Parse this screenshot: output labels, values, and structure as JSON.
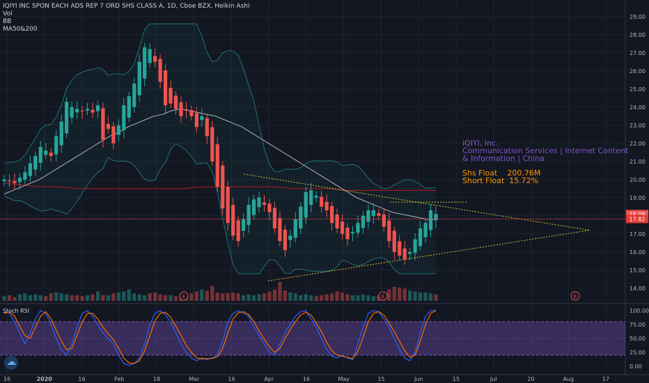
{
  "legend": {
    "title": "IQIYI INC SPON EACH ADS REP 7 ORD SHS CLASS A, 1D, Cboe BZX, Heikin Ashi",
    "lines": [
      "Vol",
      "BB",
      "MA50&200"
    ]
  },
  "info_box": {
    "company": "iQIYI, Inc.",
    "description": "Communication Services | Internet Content & Information | China",
    "shs_float_label": "Shs Float",
    "shs_float_value": "200.76M",
    "short_float_label": "Short Float",
    "short_float_value": "15.72%"
  },
  "price_badges": [
    "18.09",
    "17.82"
  ],
  "earnings_marker": "E",
  "stoch_label": "Stoch RSI",
  "colors": {
    "background": "#131722",
    "up": "#26a69a",
    "down": "#ef5350",
    "bb": "#26a69a",
    "ma50": "#d1d4dc",
    "ma200": "#b71c1c",
    "trendline": "#d4c93a",
    "stoch_k": "#2962ff",
    "stoch_d": "#ff6d00",
    "stoch_band": "#7e57c2",
    "info_purple": "#7e57c2",
    "info_orange": "#ff9800"
  },
  "chart_data": [
    {
      "type": "candlestick",
      "style": "Heikin Ashi",
      "interval": "1D",
      "price_axis_ticks": [
        "14.00",
        "15.00",
        "16.00",
        "17.00",
        "18.00",
        "19.00",
        "20.00",
        "21.00",
        "22.00",
        "23.00",
        "24.00",
        "25.00",
        "26.00",
        "27.00",
        "28.00",
        "29.00"
      ],
      "price_range": [
        13.3,
        29.3
      ],
      "time_axis_ticks": [
        "16",
        "2020",
        "16",
        "Feb",
        "18",
        "Mar",
        "16",
        "Apr",
        "16",
        "May",
        "15",
        "Jun",
        "15",
        "Jul",
        "20",
        "Aug",
        "17"
      ],
      "close_series": [
        20.0,
        19.9,
        19.8,
        20.1,
        20.4,
        20.9,
        21.3,
        21.8,
        21.6,
        21.3,
        22.4,
        23.2,
        24.3,
        24.0,
        23.9,
        23.8,
        23.9,
        23.7,
        24.1,
        22.2,
        22.8,
        22.0,
        23.0,
        24.1,
        24.6,
        25.3,
        26.5,
        27.3,
        27.2,
        26.5,
        25.4,
        24.1,
        24.2,
        23.9,
        23.5,
        23.8,
        23.5,
        22.9,
        23.5,
        22.4,
        21.0,
        19.6,
        18.4,
        17.6,
        16.9,
        16.6,
        17.8,
        18.6,
        18.9,
        19.0,
        18.6,
        18.2,
        17.3,
        16.6,
        16.1,
        16.9,
        17.8,
        18.5,
        19.3,
        19.4,
        19.1,
        18.5,
        18.3,
        17.6,
        17.3,
        17.0,
        16.7,
        17.1,
        17.6,
        18.0,
        18.3,
        18.3,
        18.0,
        17.4,
        16.6,
        16.0,
        15.8,
        15.6,
        16.0,
        16.7,
        17.3,
        17.6,
        18.3,
        18.1
      ],
      "volume_scale": [
        0.25,
        0.3,
        0.2,
        0.35,
        0.4,
        0.3,
        0.35,
        0.3,
        0.25,
        0.4,
        0.45,
        0.4,
        0.35,
        0.3,
        0.3,
        0.25,
        0.3,
        0.35,
        0.5,
        0.3,
        0.3,
        0.4,
        0.45,
        0.5,
        0.6,
        0.4,
        0.35,
        0.3,
        0.4,
        0.45,
        0.35,
        0.3,
        0.3,
        0.25,
        0.3,
        0.35,
        0.4,
        0.5,
        0.6,
        0.55,
        0.8,
        0.45,
        0.4,
        0.4,
        0.45,
        0.4,
        0.3,
        0.35,
        0.3,
        0.35,
        0.4,
        0.5,
        0.6,
        1.0,
        0.55,
        0.45,
        0.4,
        0.3,
        0.35,
        0.3,
        0.25,
        0.3,
        0.35,
        0.4,
        0.5,
        0.45,
        0.35,
        0.3,
        0.3,
        0.35,
        0.3,
        0.25,
        0.3,
        0.45,
        0.6,
        0.75,
        0.7,
        0.65,
        0.55,
        0.5,
        0.45,
        0.45,
        0.4,
        0.35
      ],
      "ma50": [
        19.2,
        19.4,
        19.6,
        19.8,
        20.0,
        20.3,
        20.6,
        20.9,
        21.2,
        21.5,
        21.8,
        22.1,
        22.4,
        22.6,
        22.9,
        23.1,
        23.3,
        23.5,
        23.6,
        23.8,
        23.9,
        23.8,
        23.7,
        23.6,
        23.5,
        23.3,
        23.1,
        22.9,
        22.6,
        22.3,
        22.0,
        21.7,
        21.4,
        21.1,
        20.8,
        20.5,
        20.2,
        19.9,
        19.6,
        19.3,
        19.0,
        18.8,
        18.6,
        18.4,
        18.2,
        18.1,
        18.0,
        17.9,
        17.8,
        17.8
      ],
      "ma200": [
        19.8,
        19.7,
        19.6,
        19.6,
        19.5,
        19.5,
        19.5,
        19.5,
        19.5,
        19.5,
        19.5,
        19.6,
        19.6,
        19.6,
        19.6,
        19.6,
        19.5,
        19.5,
        19.5,
        19.4,
        19.4,
        19.4,
        19.4,
        19.4,
        19.4
      ],
      "trendline_upper": [
        [
          0.376,
          20.3
        ],
        [
          0.908,
          17.2
        ]
      ],
      "trendline_lower": [
        [
          0.413,
          14.4
        ],
        [
          0.908,
          17.2
        ]
      ]
    },
    {
      "type": "line",
      "title": "Stoch RSI",
      "y_axis_ticks": [
        "0.00",
        "25.00",
        "50.00",
        "75.00",
        "100.00"
      ],
      "ylim": [
        0,
        100
      ],
      "bands": [
        20,
        80
      ],
      "series": [
        {
          "values": [
            100,
            95,
            80,
            60,
            40,
            60,
            85,
            100,
            95,
            75,
            50,
            30,
            20,
            40,
            70,
            95,
            100,
            90,
            75,
            60,
            50,
            40,
            20,
            5,
            2,
            5,
            15,
            40,
            75,
            95,
            100,
            92,
            80,
            60,
            40,
            25,
            15,
            10,
            15,
            12,
            15,
            20,
            45,
            80,
            95,
            100,
            95,
            90,
            70,
            55,
            40,
            25,
            20,
            40,
            60,
            75,
            90,
            98,
            100,
            85,
            70,
            50,
            30,
            18,
            15,
            20,
            15,
            12,
            40,
            70,
            95,
            100,
            98,
            85,
            70,
            50,
            30,
            15,
            10,
            25,
            60,
            90,
            100,
            100
          ]
        },
        {
          "values": [
            95,
            98,
            90,
            72,
            55,
            50,
            70,
            90,
            98,
            85,
            65,
            45,
            30,
            32,
            55,
            80,
            95,
            95,
            85,
            70,
            58,
            48,
            32,
            15,
            6,
            5,
            10,
            28,
            55,
            82,
            95,
            97,
            88,
            72,
            55,
            38,
            25,
            15,
            13,
            14,
            14,
            17,
            32,
            60,
            85,
            96,
            98,
            93,
            80,
            63,
            48,
            35,
            25,
            32,
            50,
            66,
            80,
            92,
            97,
            92,
            78,
            62,
            43,
            28,
            20,
            18,
            16,
            14,
            27,
            52,
            80,
            95,
            98,
            92,
            78,
            62,
            45,
            28,
            16,
            20,
            45,
            75,
            95,
            100
          ]
        }
      ]
    }
  ]
}
